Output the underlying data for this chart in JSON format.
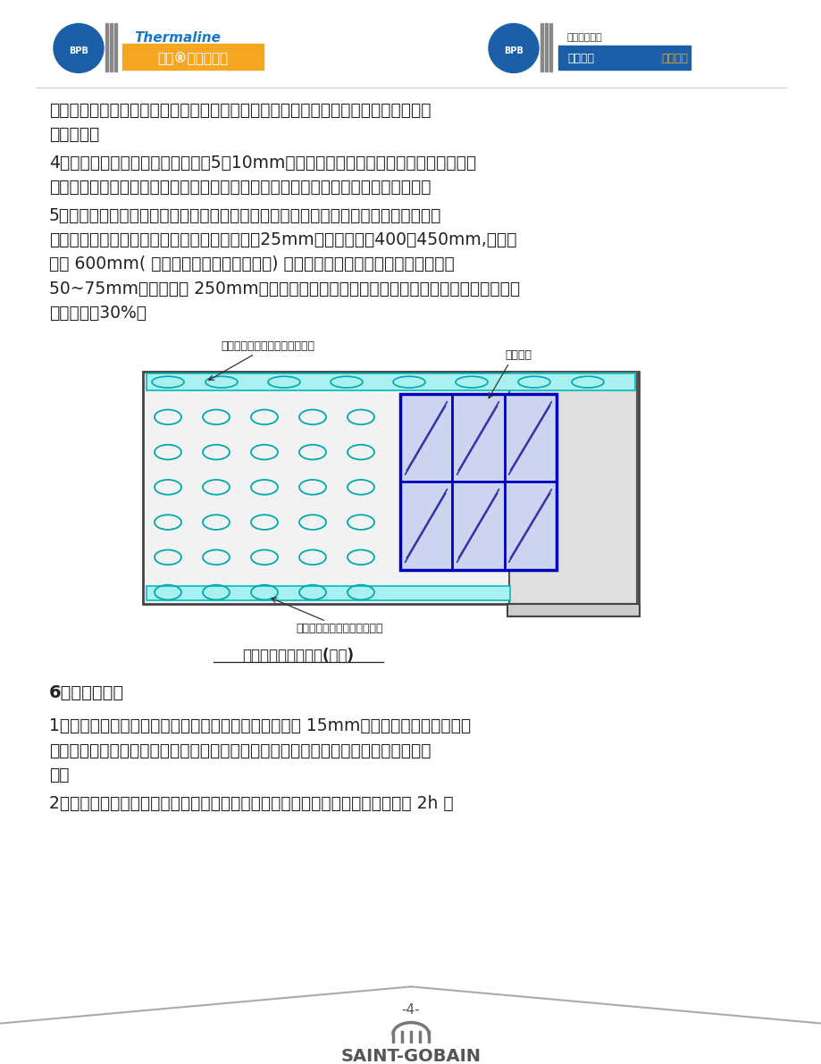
{
  "page_bg": "#ffffff",
  "body_text_color": "#222222",
  "para1_lines": [
    "墙面的砂浆、混凝土、污垢应剔凿平整并扫净墙面，对墙面上较大的孔洞应用粘贴石膏",
    "填补平整。"
  ],
  "para2_lines": [
    "4、弹线：根据空气层厚度（一般为5～10mm）及复合板的厚度在顶板和地面上弹出复合",
    "板粘贴控制线，门窗洞口控制线。画出复合板的外侧位置线，确定复合板的粘贴位置。"
  ],
  "para3_lines": [
    "5、粘结材料批抹（粘贴面如图一）：在墙面四周、窗户四周连续批抹粘结石膏材料，从",
    "复合板边线向内打点，两边粘贴块与板边缝相距25mm，纵向间距为400～450mm,横向间",
    "距为 600mm( 施工时可根据具体情况而定) 确定粘贴石膏位置，粘贴料块每块宽为",
    "50~75mm，长度约为 250mm，在踢脚线位置连续批抹粘贴材料，整体石膏粘贴面积不小",
    "于总面积的30%。"
  ],
  "diagram_caption": "粘贴石膏批抹示意图(图一)",
  "label_top": "在端部及四周连续涂抹粘结石膏",
  "label_right": "粘结石膏",
  "label_bottom": "在踢脚线处连续涂抹粘结石膏",
  "section6": "6、复合板粘贴",
  "para61_lines": [
    "1）在粘贴复合板前，应确保复合板长度小于墙面高度约 15mm。复合板从墙面一边顺序",
    "粘贴，用靠尺轻拍复合板，使背面粘贴牢固，并使板外表面与顶板、地板上的控制线对",
    "齐。"
  ],
  "para62_lines": [
    "2）粘贴复合板时，应随时用托线板检查，确保复合板墙面垂直度和平整度，粘贴 2h 内"
  ],
  "page_num": "-4-",
  "footer_brand": "SAINT-GOBAIN"
}
